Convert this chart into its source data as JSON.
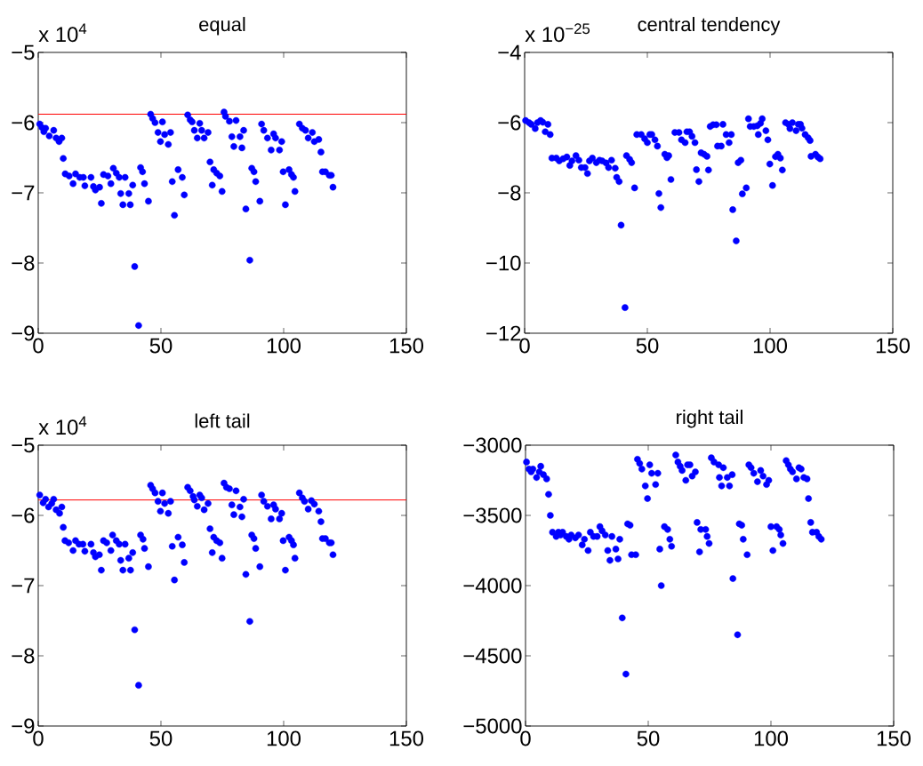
{
  "chart_data": [
    {
      "type": "scatter",
      "title": "equal",
      "annotations": [
        "x 10$^{4}$"
      ],
      "color": "#0000ff",
      "marker": "circle",
      "x": [
        0.6,
        1.5,
        2.3,
        3,
        4.5,
        6.3,
        7.3,
        8.5,
        9.6,
        10.2,
        11,
        12.6,
        14.2,
        15.2,
        16.9,
        18.4,
        19,
        21.5,
        22.5,
        23.3,
        25,
        25.7,
        26.6,
        28.4,
        29.6,
        30.6,
        31.8,
        33,
        33.6,
        34.5,
        35.4,
        36.9,
        37.5,
        38.5,
        39.3,
        40.9,
        41.7,
        42.5,
        43.3,
        44.9,
        45.8,
        46.6,
        47.6,
        48.8,
        49.8,
        50.6,
        51.5,
        53,
        53.9,
        54.6,
        55.5,
        57,
        58.7,
        59.5,
        60.9,
        61.9,
        62.7,
        63.6,
        64.8,
        65.8,
        66.6,
        67.6,
        69.2,
        70,
        70.9,
        71.5,
        72.7,
        74,
        74.9,
        75.7,
        76.3,
        77.9,
        78.9,
        79.7,
        80.6,
        82.2,
        83,
        83.7,
        84.6,
        86.2,
        87,
        87.9,
        88.6,
        90.3,
        91,
        91.9,
        93.4,
        94.9,
        95.9,
        96.7,
        98.3,
        99.2,
        99.8,
        100.7,
        102.2,
        103.2,
        104,
        104.6,
        106.4,
        107.6,
        108.9,
        110,
        111.7,
        112.5,
        114.3,
        115.2,
        115.8,
        117,
        118.6,
        119.4,
        120.1
      ],
      "values": [
        -6.02,
        -6.07,
        -6.13,
        -6.08,
        -6.19,
        -6.11,
        -6.22,
        -6.27,
        -6.22,
        -6.51,
        -6.73,
        -6.76,
        -6.87,
        -6.73,
        -6.78,
        -6.78,
        -6.9,
        -6.78,
        -6.91,
        -6.96,
        -6.92,
        -7.15,
        -6.74,
        -6.76,
        -6.87,
        -6.65,
        -6.72,
        -6.78,
        -7.01,
        -7.17,
        -6.78,
        -7.01,
        -7.17,
        -6.89,
        -8.05,
        -8.89,
        -6.64,
        -6.7,
        -6.87,
        -7.12,
        -5.88,
        -5.94,
        -6.0,
        -6.14,
        -6.27,
        -5.99,
        -6.17,
        -6.31,
        -6.14,
        -6.84,
        -7.32,
        -6.67,
        -6.78,
        -7.03,
        -5.89,
        -5.96,
        -5.99,
        -6.11,
        -6.22,
        -6.01,
        -6.11,
        -6.22,
        -6.14,
        -6.56,
        -6.89,
        -6.67,
        -6.72,
        -6.76,
        -6.98,
        -5.85,
        -5.91,
        -5.98,
        -6.2,
        -6.34,
        -5.97,
        -6.2,
        -6.36,
        -6.11,
        -7.23,
        -7.96,
        -6.65,
        -6.7,
        -6.84,
        -7.12,
        -6.02,
        -6.11,
        -6.22,
        -6.39,
        -6.16,
        -6.22,
        -6.39,
        -6.27,
        -6.7,
        -7.17,
        -6.67,
        -6.74,
        -6.78,
        -6.98,
        -6.02,
        -6.08,
        -6.11,
        -6.22,
        -6.14,
        -6.27,
        -6.24,
        -6.42,
        -6.7,
        -6.7,
        -6.75,
        -6.75,
        -6.92
      ],
      "xlim": [
        0,
        150
      ],
      "xticks": [
        0,
        50,
        100,
        150
      ],
      "ylim": [
        -9,
        -5
      ],
      "yticks": [
        {
          "value": -9,
          "label": "−9"
        },
        {
          "value": -8,
          "label": "−8"
        },
        {
          "value": -7,
          "label": "−7"
        },
        {
          "value": -6,
          "label": "−6"
        },
        {
          "value": -5,
          "label": "−5"
        }
      ],
      "ref_lines": [
        {
          "axis": "y",
          "value": -5.88,
          "color": "#ff0000"
        }
      ]
    },
    {
      "type": "scatter",
      "title": "central tendency",
      "annotations": [
        "x 10$^{−25}$"
      ],
      "color": "#0000ff",
      "marker": "circle",
      "x": [
        0.4,
        1.8,
        2.7,
        4.3,
        5.2,
        6.5,
        7.4,
        8.4,
        9.5,
        10.4,
        11.1,
        12.9,
        14.1,
        15.7,
        17.2,
        18.4,
        19.3,
        20.9,
        22.1,
        23.1,
        24.6,
        25.6,
        26.4,
        27.6,
        29.2,
        30.5,
        31.6,
        33.2,
        34.2,
        35.4,
        36.9,
        37.5,
        38.5,
        39.3,
        40.9,
        41.5,
        42.8,
        43.6,
        44.8,
        45.7,
        47.5,
        48.9,
        50,
        51,
        51.8,
        53.1,
        54.1,
        54.7,
        55.5,
        57.1,
        58,
        58.7,
        59.6,
        61.2,
        62.9,
        63.9,
        65.4,
        66.1,
        67.2,
        68.2,
        69.4,
        70,
        71,
        71.9,
        73.1,
        74.3,
        74.9,
        75.6,
        76.8,
        78.1,
        78.6,
        80.1,
        80.8,
        82.1,
        83.3,
        84.2,
        84.8,
        86.2,
        87,
        88.1,
        88.7,
        90.3,
        91.2,
        91.9,
        93.4,
        94.8,
        95.2,
        96.1,
        96.8,
        98.3,
        99.1,
        99.9,
        101,
        102.2,
        103.2,
        104.2,
        105,
        106.3,
        107.5,
        108.1,
        109.1,
        110.6,
        111.5,
        112.4,
        113,
        114.3,
        115.5,
        116.3,
        116.7,
        118.5,
        119.5,
        120.4
      ],
      "values": [
        -5.94,
        -6.0,
        -6.05,
        -6.17,
        -6.0,
        -5.94,
        -5.99,
        -6.26,
        -6.05,
        -6.34,
        -7.01,
        -7.01,
        -7.09,
        -7.03,
        -6.98,
        -7.22,
        -7.09,
        -6.94,
        -7.07,
        -7.28,
        -7.28,
        -7.45,
        -7.09,
        -7.01,
        -7.14,
        -7.07,
        -7.09,
        -7.15,
        -7.28,
        -7.07,
        -7.3,
        -7.56,
        -7.68,
        -8.92,
        -11.27,
        -6.94,
        -7.05,
        -7.14,
        -7.86,
        -6.34,
        -6.34,
        -6.46,
        -6.57,
        -6.34,
        -6.34,
        -6.49,
        -6.67,
        -8.02,
        -8.42,
        -6.9,
        -7.0,
        -6.94,
        -7.62,
        -6.28,
        -6.28,
        -6.49,
        -6.57,
        -6.26,
        -6.26,
        -6.39,
        -6.57,
        -7.34,
        -7.68,
        -6.86,
        -6.9,
        -6.96,
        -7.35,
        -6.11,
        -6.06,
        -6.06,
        -6.67,
        -6.67,
        -6.05,
        -6.34,
        -6.57,
        -6.34,
        -8.48,
        -9.37,
        -7.14,
        -7.07,
        -8.03,
        -7.86,
        -5.89,
        -6.11,
        -6.11,
        -6.09,
        -6.34,
        -6.02,
        -5.89,
        -6.23,
        -6.49,
        -7.18,
        -7.79,
        -6.97,
        -6.9,
        -7.01,
        -7.35,
        -6.0,
        -6.05,
        -6.17,
        -6.0,
        -6.23,
        -6.05,
        -6.05,
        -6.16,
        -6.34,
        -6.43,
        -6.51,
        -6.96,
        -6.9,
        -6.98,
        -7.03
      ],
      "xlim": [
        0,
        150
      ],
      "xticks": [
        0,
        50,
        100,
        150
      ],
      "ylim": [
        -12,
        -4
      ],
      "yticks": [
        {
          "value": -12,
          "label": "−12"
        },
        {
          "value": -10,
          "label": "−10"
        },
        {
          "value": -8,
          "label": "−8"
        },
        {
          "value": -6,
          "label": "−6"
        },
        {
          "value": -4,
          "label": "−4"
        }
      ]
    },
    {
      "type": "scatter",
      "title": "left tail",
      "annotations": [
        "x 10$^{4}$"
      ],
      "color": "#0000ff",
      "marker": "circle",
      "x": [
        0.6,
        2,
        3,
        4.2,
        5.5,
        6.3,
        7.3,
        8.7,
        9.6,
        10.2,
        10.9,
        12.4,
        14.2,
        15.2,
        16.6,
        18.2,
        19,
        21.5,
        22.5,
        23.3,
        24.9,
        25.7,
        26.6,
        27.9,
        29.6,
        30.3,
        31.8,
        33,
        33.6,
        34.5,
        35.4,
        36.9,
        37.6,
        38.5,
        39.3,
        40.9,
        41.7,
        42.7,
        43.3,
        44.9,
        45.8,
        46.6,
        47.6,
        48.8,
        49.8,
        50.6,
        51.5,
        53,
        53.9,
        54.6,
        55.5,
        57,
        58.7,
        59.5,
        60.9,
        61.9,
        63.1,
        63.6,
        64.8,
        65.8,
        66.6,
        67.6,
        69.2,
        70,
        70.9,
        71.5,
        72.7,
        74,
        74.9,
        75.7,
        76.7,
        77.9,
        78.9,
        79.7,
        80.6,
        82.2,
        83,
        83.7,
        84.6,
        86.2,
        87,
        87.9,
        88.6,
        90.3,
        91,
        91.9,
        93.4,
        94.9,
        95.9,
        96.7,
        98.3,
        99.2,
        99.8,
        100.7,
        102.2,
        103.2,
        104,
        104.6,
        106.4,
        107.6,
        108.5,
        110,
        111.3,
        112.5,
        114.3,
        115.2,
        115.8,
        117,
        118.6,
        119.4,
        120.1
      ],
      "values": [
        -5.71,
        -5.82,
        -5.77,
        -5.88,
        -5.83,
        -5.77,
        -5.92,
        -5.97,
        -5.88,
        -6.17,
        -6.36,
        -6.39,
        -6.5,
        -6.36,
        -6.41,
        -6.41,
        -6.51,
        -6.41,
        -6.53,
        -6.59,
        -6.56,
        -6.78,
        -6.36,
        -6.39,
        -6.5,
        -6.28,
        -6.36,
        -6.41,
        -6.64,
        -6.78,
        -6.41,
        -6.61,
        -6.78,
        -6.53,
        -7.63,
        -8.42,
        -6.28,
        -6.34,
        -6.47,
        -6.73,
        -5.57,
        -5.62,
        -5.68,
        -5.8,
        -5.94,
        -5.68,
        -5.83,
        -5.97,
        -5.8,
        -6.44,
        -6.92,
        -6.31,
        -6.42,
        -6.67,
        -5.6,
        -5.65,
        -5.73,
        -5.78,
        -5.87,
        -5.71,
        -5.75,
        -5.92,
        -5.83,
        -6.19,
        -6.53,
        -6.31,
        -6.36,
        -6.39,
        -6.61,
        -5.54,
        -5.6,
        -5.62,
        -5.85,
        -5.99,
        -5.65,
        -5.88,
        -6.02,
        -5.77,
        -6.84,
        -7.51,
        -6.28,
        -6.33,
        -6.47,
        -6.73,
        -5.71,
        -5.8,
        -5.87,
        -6.05,
        -5.85,
        -5.91,
        -6.05,
        -5.97,
        -6.36,
        -6.78,
        -6.31,
        -6.36,
        -6.42,
        -6.61,
        -5.68,
        -5.75,
        -5.8,
        -5.91,
        -5.79,
        -5.84,
        -5.94,
        -6.09,
        -6.33,
        -6.33,
        -6.39,
        -6.39,
        -6.56
      ],
      "xlim": [
        0,
        150
      ],
      "xticks": [
        0,
        50,
        100,
        150
      ],
      "ylim": [
        -9,
        -5
      ],
      "yticks": [
        {
          "value": -9,
          "label": "−9"
        },
        {
          "value": -8,
          "label": "−8"
        },
        {
          "value": -7,
          "label": "−7"
        },
        {
          "value": -6,
          "label": "−6"
        },
        {
          "value": -5,
          "label": "−5"
        }
      ],
      "ref_lines": [
        {
          "axis": "y",
          "value": -5.78,
          "color": "#ff0000"
        }
      ]
    },
    {
      "type": "scatter",
      "title": "right tail",
      "color": "#0000ff",
      "marker": "circle",
      "x": [
        0.4,
        1.4,
        2.3,
        3,
        4.5,
        5.6,
        6.2,
        7.3,
        8.6,
        9.4,
        10.1,
        11,
        12.5,
        13.4,
        14.3,
        15.1,
        16.6,
        17.7,
        18.6,
        20.3,
        21.6,
        23.1,
        24,
        25.5,
        26.4,
        27.7,
        29.2,
        30.3,
        31.2,
        32.5,
        33.5,
        34.4,
        35.2,
        36.8,
        37.7,
        38.4,
        39.4,
        40.9,
        41.6,
        42.6,
        43.2,
        44.9,
        45.6,
        46.5,
        47.4,
        48.8,
        49.7,
        50.6,
        51.4,
        53,
        53.9,
        54.7,
        55.3,
        56.6,
        57.9,
        58.8,
        59.5,
        61.2,
        62.1,
        63,
        63.8,
        65.3,
        66,
        67,
        67.9,
        69.2,
        69.9,
        70.9,
        71.4,
        73.4,
        74,
        74.8,
        75.7,
        76.8,
        78.7,
        79,
        79.9,
        80.6,
        82.2,
        83.1,
        84.2,
        84.5,
        86.4,
        87.1,
        88.1,
        88.7,
        90.3,
        91,
        91.9,
        93,
        94.5,
        95.8,
        96.8,
        98.2,
        99.1,
        100,
        100.8,
        102.3,
        103.4,
        104,
        104.9,
        106.2,
        107.1,
        107.9,
        108.8,
        110.4,
        111.4,
        112.3,
        113.4,
        114.7,
        115.3,
        116.2,
        116.9,
        118.6,
        119.5,
        120.5
      ],
      "values": [
        -3120,
        -3170,
        -3190,
        -3170,
        -3230,
        -3190,
        -3150,
        -3210,
        -3240,
        -3350,
        -3500,
        -3620,
        -3650,
        -3620,
        -3640,
        -3620,
        -3650,
        -3670,
        -3640,
        -3660,
        -3640,
        -3710,
        -3670,
        -3750,
        -3620,
        -3650,
        -3650,
        -3580,
        -3610,
        -3640,
        -3750,
        -3820,
        -3650,
        -3740,
        -3810,
        -3670,
        -4230,
        -4630,
        -3560,
        -3570,
        -3780,
        -3780,
        -3100,
        -3130,
        -3170,
        -3290,
        -3380,
        -3140,
        -3200,
        -3280,
        -3200,
        -3740,
        -4000,
        -3580,
        -3600,
        -3670,
        -3720,
        -3070,
        -3120,
        -3150,
        -3180,
        -3250,
        -3140,
        -3140,
        -3220,
        -3190,
        -3550,
        -3760,
        -3600,
        -3600,
        -3650,
        -3700,
        -3090,
        -3120,
        -3140,
        -3230,
        -3290,
        -3160,
        -3230,
        -3290,
        -3210,
        -3950,
        -4350,
        -3560,
        -3570,
        -3670,
        -3780,
        -3140,
        -3160,
        -3200,
        -3260,
        -3180,
        -3220,
        -3280,
        -3250,
        -3580,
        -3750,
        -3580,
        -3600,
        -3640,
        -3700,
        -3110,
        -3140,
        -3170,
        -3190,
        -3240,
        -3160,
        -3170,
        -3230,
        -3240,
        -3380,
        -3550,
        -3620,
        -3620,
        -3650,
        -3670
      ],
      "xlim": [
        0,
        150
      ],
      "xticks": [
        0,
        50,
        100,
        150
      ],
      "ylim": [
        -5000,
        -3000
      ],
      "yticks": [
        {
          "value": -5000,
          "label": "−5000"
        },
        {
          "value": -4500,
          "label": "−4500"
        },
        {
          "value": -4000,
          "label": "−4000"
        },
        {
          "value": -3500,
          "label": "−3500"
        },
        {
          "value": -3000,
          "label": "−3000"
        }
      ]
    }
  ]
}
